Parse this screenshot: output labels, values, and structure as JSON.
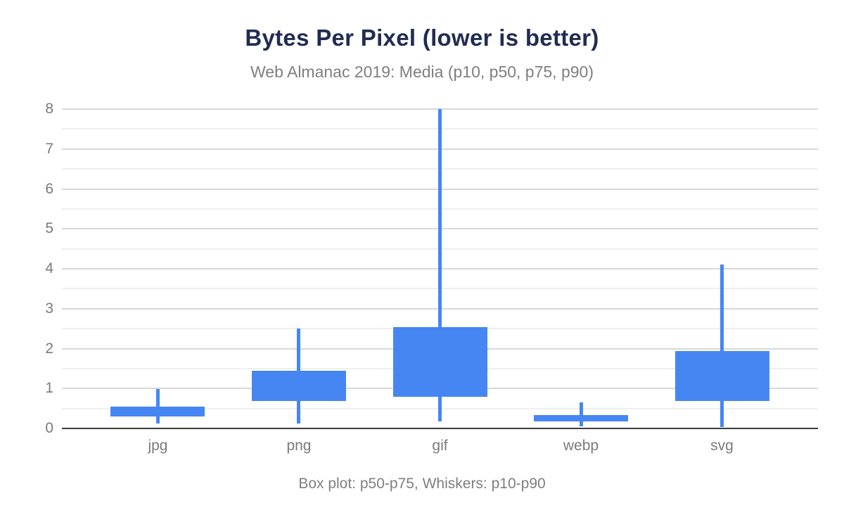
{
  "card": {
    "title": "Bytes Per Pixel (lower is better)",
    "subtitle": "Web Almanac 2019: Media (p10, p50, p75, p90)",
    "footnote": "Box plot: p50-p75, Whiskers: p10-p90"
  },
  "colors": {
    "box_fill": "#4686F3",
    "title_text": "#222C50",
    "subtitle_text": "#7F7F7F",
    "axis_text": "#7A7A7A",
    "gridline_major": "#D8D8D8",
    "gridline_minor": "#EFEFEF",
    "axis_line": "#3D3D3D",
    "background": "#FFFFFF"
  },
  "chart_data": {
    "type": "boxplot",
    "title": "Bytes Per Pixel (lower is better)",
    "subtitle": "Web Almanac 2019: Media (p10, p50, p75, p90)",
    "note": "Box plot: p50-p75, Whiskers: p10-p90",
    "categories": [
      "jpg",
      "png",
      "gif",
      "webp",
      "svg"
    ],
    "series": [
      {
        "name": "jpg",
        "p10": 0.12,
        "p50": 0.3,
        "p75": 0.55,
        "p90": 0.98
      },
      {
        "name": "png",
        "p10": 0.12,
        "p50": 0.69,
        "p75": 1.45,
        "p90": 2.5
      },
      {
        "name": "gif",
        "p10": 0.17,
        "p50": 0.8,
        "p75": 2.53,
        "p90": 8.0
      },
      {
        "name": "webp",
        "p10": 0.06,
        "p50": 0.18,
        "p75": 0.33,
        "p90": 0.65
      },
      {
        "name": "svg",
        "p10": 0.03,
        "p50": 0.68,
        "p75": 1.93,
        "p90": 4.1
      }
    ],
    "box_spec": "box spans p50 to p75, whiskers span p10 to p90",
    "xlabel": "",
    "ylabel": "",
    "ylim": [
      0,
      8
    ],
    "yticks": [
      0,
      1,
      2,
      3,
      4,
      5,
      6,
      7,
      8
    ],
    "minor_gridline_interval": 0.5,
    "grid": "horizontal; major lines on integers, lighter minor lines on halves",
    "legend": "none"
  }
}
